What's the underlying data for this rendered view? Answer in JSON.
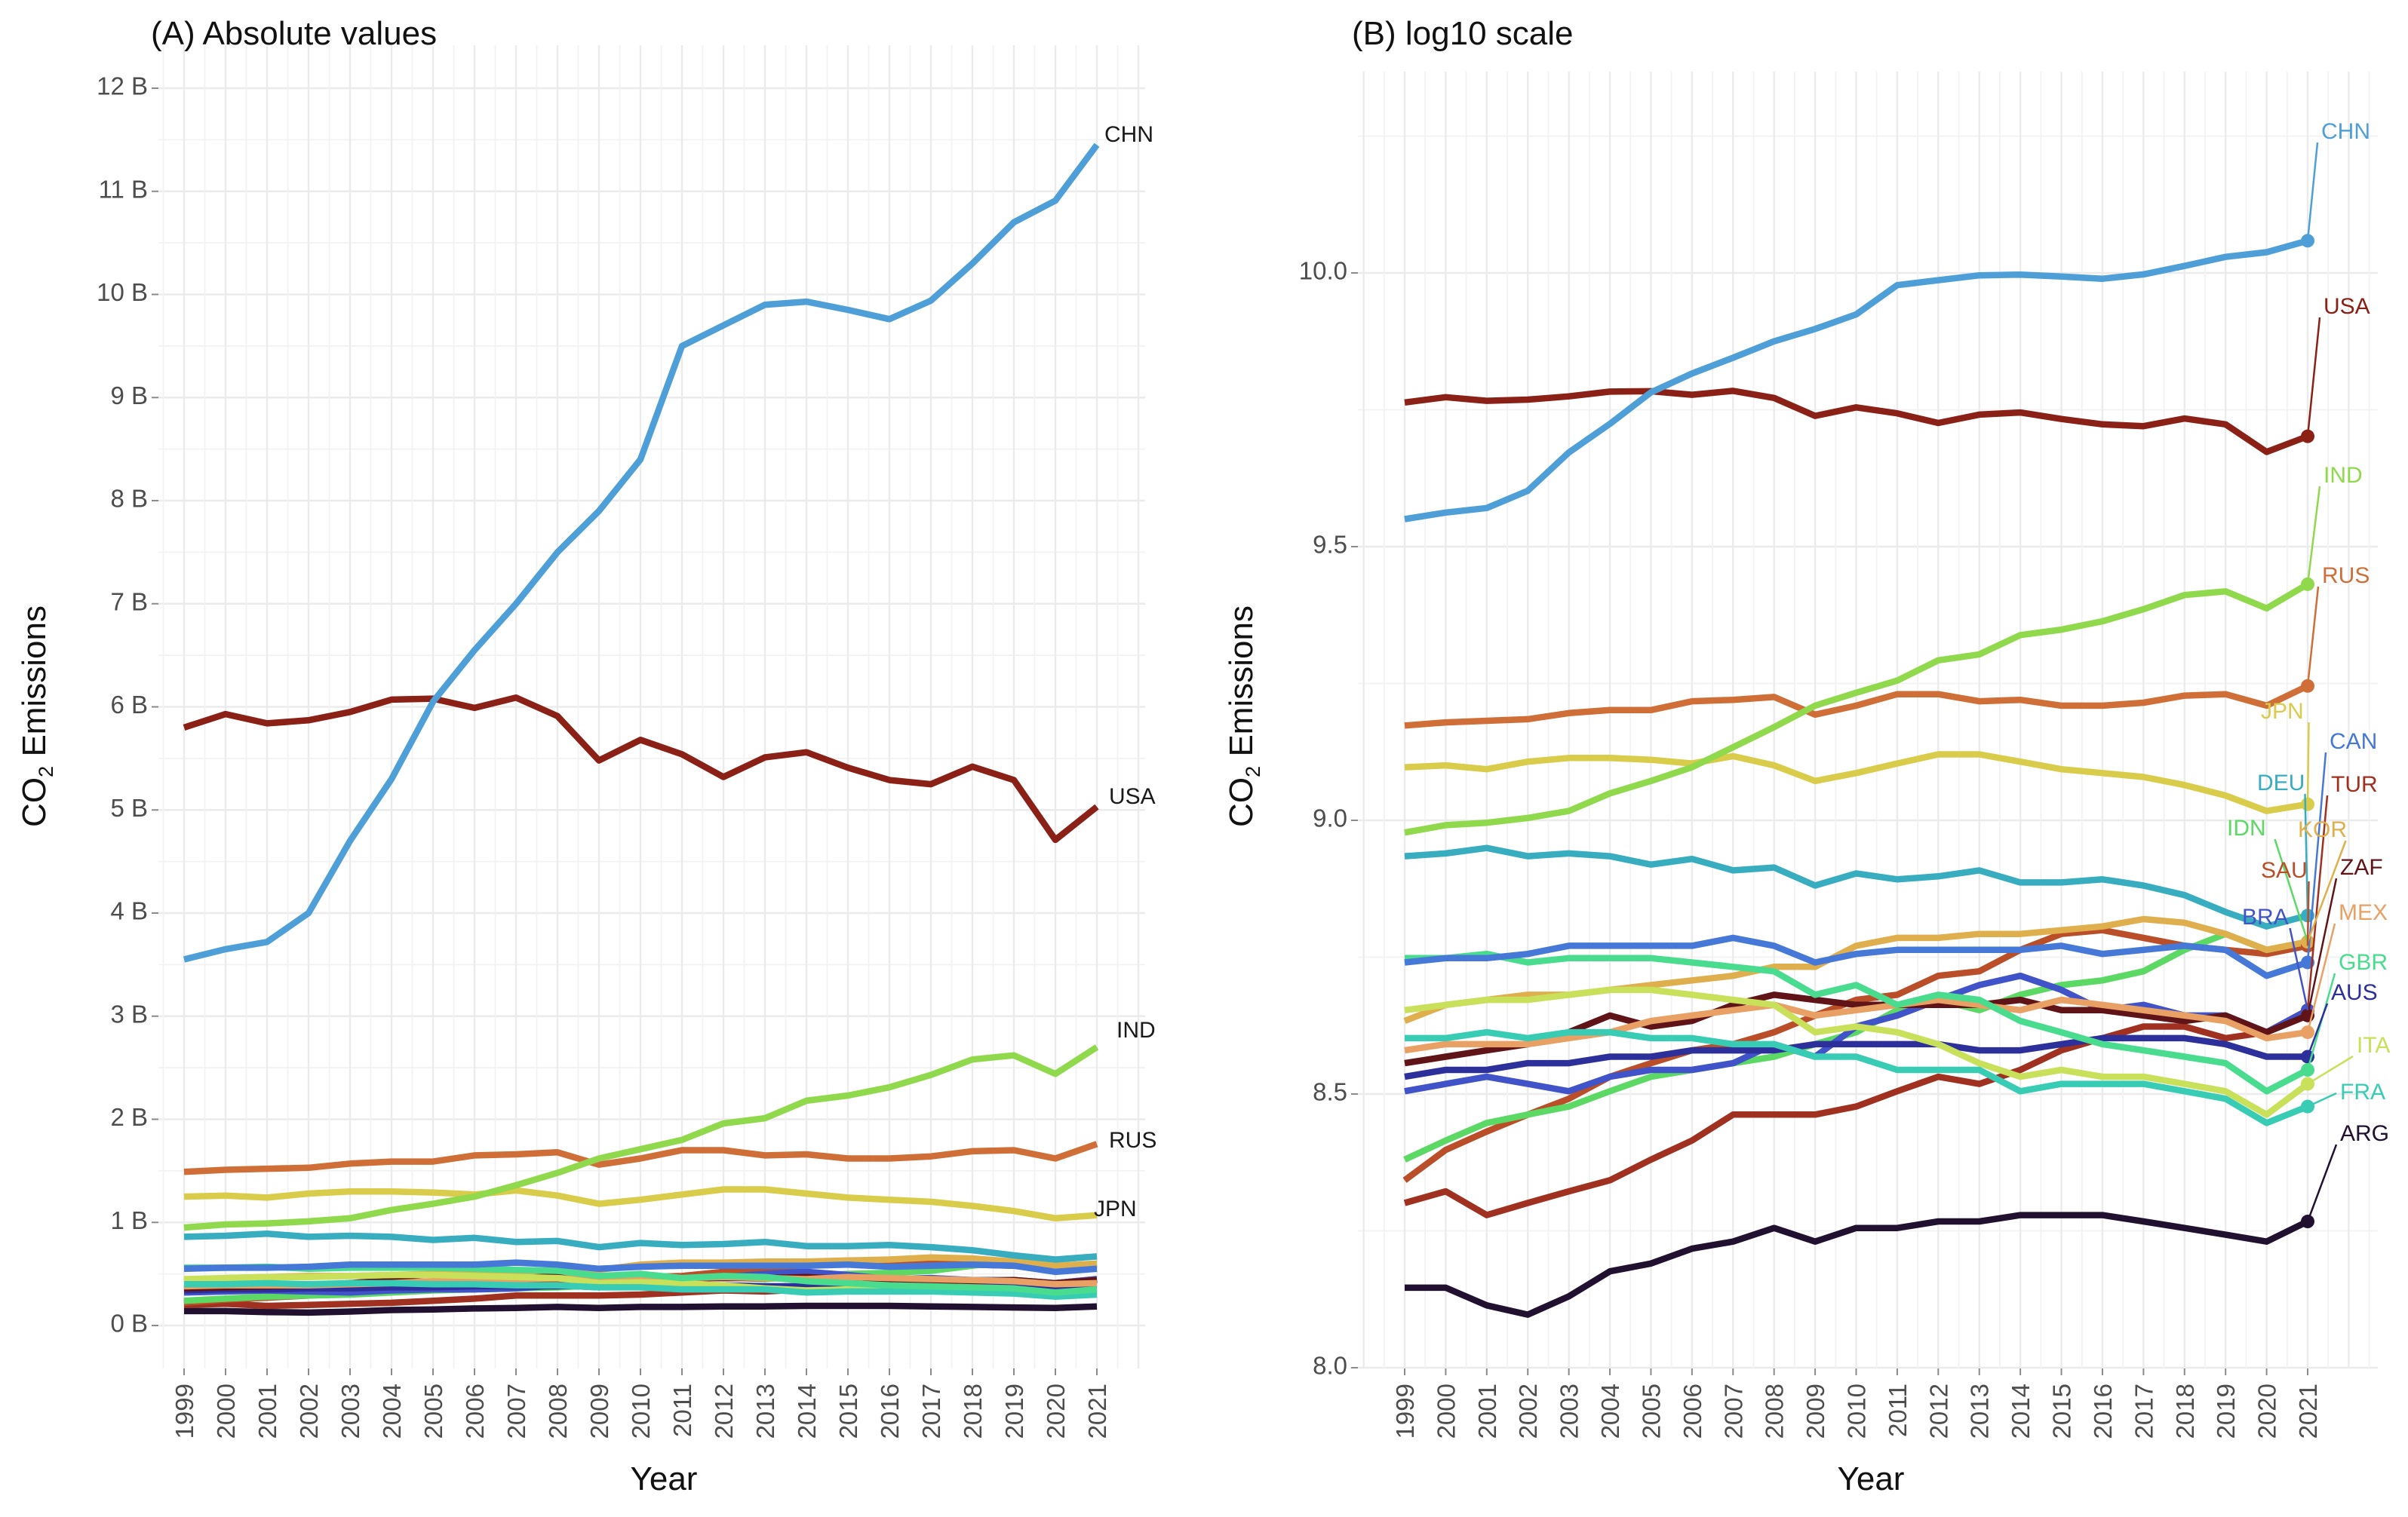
{
  "figure": {
    "panel_a": {
      "title": "(A) Absolute values"
    },
    "panel_b": {
      "title": "(B) log10 scale"
    },
    "x_axis_title": "Year",
    "y_axis": {
      "prefix": "CO",
      "sub": "2",
      "suffix": " Emissions"
    },
    "background": "#ffffff"
  },
  "chart_data": [
    {
      "type": "line",
      "title": "(A) Absolute values",
      "xlabel": "Year",
      "ylabel": "CO₂ Emissions",
      "y_unit": "billion tonnes",
      "ylim": [
        0,
        12.4
      ],
      "grid": true,
      "grid_major_color": "#ebebeb",
      "grid_minor_color": "#f2f2f2",
      "x": [
        1999,
        2000,
        2001,
        2002,
        2003,
        2004,
        2005,
        2006,
        2007,
        2008,
        2009,
        2010,
        2011,
        2012,
        2013,
        2014,
        2015,
        2016,
        2017,
        2018,
        2019,
        2020,
        2021
      ],
      "ytick_values": [
        0,
        1,
        2,
        3,
        4,
        5,
        6,
        7,
        8,
        9,
        10,
        11,
        12
      ],
      "ytick_labels": [
        "0 B",
        "1 B",
        "2 B",
        "3 B",
        "4 B",
        "5 B",
        "6 B",
        "7 B",
        "8 B",
        "9 B",
        "10 B",
        "11 B",
        "12 B"
      ],
      "yminor_values": [
        0.5,
        1.5,
        2.5,
        3.5,
        4.5,
        5.5,
        6.5,
        7.5,
        8.5,
        9.5,
        10.5,
        11.5
      ],
      "series": [
        {
          "name": "ARG",
          "color": "#221031",
          "values": [
            0.14,
            0.14,
            0.13,
            0.125,
            0.135,
            0.15,
            0.155,
            0.165,
            0.17,
            0.18,
            0.17,
            0.18,
            0.18,
            0.185,
            0.185,
            0.19,
            0.19,
            0.19,
            0.185,
            0.18,
            0.175,
            0.17,
            0.185
          ]
        },
        {
          "name": "TUR",
          "color": "#A03020",
          "values": [
            0.2,
            0.21,
            0.19,
            0.2,
            0.21,
            0.22,
            0.24,
            0.26,
            0.29,
            0.29,
            0.29,
            0.3,
            0.32,
            0.34,
            0.33,
            0.35,
            0.38,
            0.4,
            0.42,
            0.42,
            0.4,
            0.41,
            0.45
          ]
        },
        {
          "name": "SAU",
          "color": "#B94E28",
          "values": [
            0.22,
            0.25,
            0.27,
            0.29,
            0.31,
            0.34,
            0.36,
            0.38,
            0.39,
            0.41,
            0.44,
            0.47,
            0.48,
            0.52,
            0.53,
            0.58,
            0.62,
            0.63,
            0.61,
            0.59,
            0.58,
            0.57,
            0.59
          ]
        },
        {
          "name": "IDN",
          "color": "#5CD964",
          "values": [
            0.24,
            0.26,
            0.28,
            0.29,
            0.3,
            0.32,
            0.34,
            0.35,
            0.36,
            0.37,
            0.39,
            0.41,
            0.45,
            0.47,
            0.45,
            0.48,
            0.5,
            0.51,
            0.53,
            0.58,
            0.62,
            0.58,
            0.6
          ]
        },
        {
          "name": "BRA",
          "color": "#4053C8",
          "values": [
            0.32,
            0.33,
            0.34,
            0.33,
            0.32,
            0.34,
            0.35,
            0.35,
            0.36,
            0.39,
            0.37,
            0.42,
            0.44,
            0.47,
            0.5,
            0.52,
            0.49,
            0.45,
            0.46,
            0.44,
            0.44,
            0.41,
            0.45
          ]
        },
        {
          "name": "AUS",
          "color": "#2D309B",
          "values": [
            0.34,
            0.35,
            0.35,
            0.36,
            0.36,
            0.37,
            0.37,
            0.38,
            0.38,
            0.38,
            0.39,
            0.39,
            0.39,
            0.39,
            0.38,
            0.38,
            0.39,
            0.4,
            0.4,
            0.4,
            0.39,
            0.37,
            0.37
          ]
        },
        {
          "name": "ZAF",
          "color": "#601418",
          "values": [
            0.36,
            0.37,
            0.38,
            0.39,
            0.41,
            0.44,
            0.42,
            0.43,
            0.46,
            0.48,
            0.47,
            0.46,
            0.46,
            0.46,
            0.46,
            0.47,
            0.45,
            0.45,
            0.44,
            0.43,
            0.44,
            0.41,
            0.44
          ]
        },
        {
          "name": "MEX",
          "color": "#E8A064",
          "values": [
            0.38,
            0.39,
            0.39,
            0.39,
            0.4,
            0.41,
            0.43,
            0.44,
            0.45,
            0.46,
            0.44,
            0.45,
            0.46,
            0.47,
            0.46,
            0.45,
            0.47,
            0.46,
            0.45,
            0.44,
            0.43,
            0.4,
            0.41
          ]
        },
        {
          "name": "KOR",
          "color": "#DFAF4E",
          "values": [
            0.43,
            0.46,
            0.47,
            0.48,
            0.48,
            0.49,
            0.5,
            0.51,
            0.52,
            0.54,
            0.54,
            0.59,
            0.61,
            0.61,
            0.62,
            0.62,
            0.63,
            0.64,
            0.66,
            0.65,
            0.62,
            0.58,
            0.6
          ]
        },
        {
          "name": "ITA",
          "color": "#C8E05A",
          "values": [
            0.45,
            0.46,
            0.47,
            0.47,
            0.48,
            0.49,
            0.49,
            0.48,
            0.47,
            0.46,
            0.41,
            0.42,
            0.41,
            0.39,
            0.36,
            0.34,
            0.35,
            0.34,
            0.34,
            0.33,
            0.32,
            0.29,
            0.33
          ]
        },
        {
          "name": "FRA",
          "color": "#38CCB4",
          "values": [
            0.4,
            0.4,
            0.41,
            0.4,
            0.41,
            0.41,
            0.4,
            0.4,
            0.39,
            0.39,
            0.37,
            0.37,
            0.35,
            0.35,
            0.35,
            0.32,
            0.33,
            0.33,
            0.33,
            0.32,
            0.31,
            0.28,
            0.3
          ]
        },
        {
          "name": "GBR",
          "color": "#4ADC8E",
          "values": [
            0.56,
            0.56,
            0.57,
            0.55,
            0.56,
            0.56,
            0.56,
            0.55,
            0.54,
            0.53,
            0.48,
            0.5,
            0.46,
            0.48,
            0.47,
            0.43,
            0.41,
            0.39,
            0.38,
            0.37,
            0.36,
            0.32,
            0.35
          ]
        },
        {
          "name": "CAN",
          "color": "#4678D8",
          "values": [
            0.55,
            0.56,
            0.56,
            0.57,
            0.59,
            0.59,
            0.59,
            0.59,
            0.61,
            0.59,
            0.55,
            0.57,
            0.58,
            0.58,
            0.58,
            0.58,
            0.59,
            0.57,
            0.58,
            0.59,
            0.58,
            0.52,
            0.55
          ]
        },
        {
          "name": "DEU",
          "color": "#38ADC0",
          "values": [
            0.86,
            0.87,
            0.89,
            0.86,
            0.87,
            0.86,
            0.83,
            0.85,
            0.81,
            0.82,
            0.76,
            0.8,
            0.78,
            0.79,
            0.81,
            0.77,
            0.77,
            0.78,
            0.76,
            0.73,
            0.68,
            0.64,
            0.67
          ]
        },
        {
          "name": "JPN",
          "color": "#D9CC4A",
          "values": [
            1.25,
            1.26,
            1.24,
            1.28,
            1.3,
            1.3,
            1.29,
            1.27,
            1.31,
            1.26,
            1.18,
            1.22,
            1.27,
            1.32,
            1.32,
            1.28,
            1.24,
            1.22,
            1.2,
            1.16,
            1.11,
            1.04,
            1.07
          ]
        },
        {
          "name": "RUS",
          "color": "#D06E38",
          "values": [
            1.49,
            1.51,
            1.52,
            1.53,
            1.57,
            1.59,
            1.59,
            1.65,
            1.66,
            1.68,
            1.56,
            1.62,
            1.7,
            1.7,
            1.65,
            1.66,
            1.62,
            1.62,
            1.64,
            1.69,
            1.7,
            1.62,
            1.76
          ]
        },
        {
          "name": "IND",
          "color": "#90D94C",
          "values": [
            0.95,
            0.98,
            0.99,
            1.01,
            1.04,
            1.12,
            1.18,
            1.25,
            1.36,
            1.48,
            1.62,
            1.71,
            1.8,
            1.96,
            2.01,
            2.18,
            2.23,
            2.31,
            2.43,
            2.58,
            2.62,
            2.44,
            2.7
          ]
        },
        {
          "name": "USA",
          "color": "#8B2016",
          "values": [
            5.8,
            5.93,
            5.84,
            5.87,
            5.95,
            6.07,
            6.08,
            5.99,
            6.09,
            5.91,
            5.48,
            5.68,
            5.54,
            5.32,
            5.51,
            5.56,
            5.41,
            5.29,
            5.25,
            5.42,
            5.29,
            4.71,
            5.03
          ]
        },
        {
          "name": "CHN",
          "color": "#4E9FD8",
          "values": [
            3.55,
            3.65,
            3.72,
            4.0,
            4.7,
            5.3,
            6.05,
            6.55,
            7.0,
            7.5,
            7.9,
            8.4,
            9.5,
            9.7,
            9.9,
            9.93,
            9.85,
            9.76,
            9.94,
            10.3,
            10.7,
            10.91,
            11.45
          ]
        }
      ],
      "end_label_color": "#1a1a1a",
      "end_labels": [
        {
          "name": "CHN",
          "x": 1464,
          "y": 180
        },
        {
          "name": "USA",
          "x": 1470,
          "y": 1058
        },
        {
          "name": "IND",
          "x": 1480,
          "y": 1368
        },
        {
          "name": "RUS",
          "x": 1470,
          "y": 1514
        },
        {
          "name": "JPN",
          "x": 1450,
          "y": 1605
        }
      ]
    },
    {
      "type": "line",
      "title": "(B) log10 scale",
      "xlabel": "Year",
      "ylabel": "CO₂ Emissions",
      "y_formula": "log10(tonnes) = 9 + log10(billions); series values shared with panel A",
      "ylim": [
        8.0,
        10.3
      ],
      "grid": true,
      "x": [
        1999,
        2000,
        2001,
        2002,
        2003,
        2004,
        2005,
        2006,
        2007,
        2008,
        2009,
        2010,
        2011,
        2012,
        2013,
        2014,
        2015,
        2016,
        2017,
        2018,
        2019,
        2020,
        2021
      ],
      "ytick_values": [
        8.0,
        8.5,
        9.0,
        9.5,
        10.0
      ],
      "ytick_labels": [
        "8.0",
        "8.5",
        "9.0",
        "9.5",
        "10.0"
      ],
      "yminor_values": [
        8.25,
        8.75,
        9.25,
        9.75,
        10.25
      ],
      "end_dots": true,
      "end_labels": [
        {
          "name": "CHN",
          "x": 3077,
          "y": 176
        },
        {
          "name": "USA",
          "x": 3080,
          "y": 408
        },
        {
          "name": "IND",
          "x": 3080,
          "y": 632
        },
        {
          "name": "RUS",
          "x": 3078,
          "y": 765
        },
        {
          "name": "JPN",
          "x": 2997,
          "y": 945
        },
        {
          "name": "CAN",
          "x": 3088,
          "y": 985
        },
        {
          "name": "DEU",
          "x": 2992,
          "y": 1040
        },
        {
          "name": "TUR",
          "x": 3090,
          "y": 1042
        },
        {
          "name": "IDN",
          "x": 2952,
          "y": 1100
        },
        {
          "name": "KOR",
          "x": 3046,
          "y": 1102
        },
        {
          "name": "SAU",
          "x": 2997,
          "y": 1156
        },
        {
          "name": "ZAF",
          "x": 3102,
          "y": 1152
        },
        {
          "name": "BRA",
          "x": 2972,
          "y": 1218
        },
        {
          "name": "MEX",
          "x": 3100,
          "y": 1212
        },
        {
          "name": "GBR",
          "x": 3100,
          "y": 1278
        },
        {
          "name": "AUS",
          "x": 3090,
          "y": 1318
        },
        {
          "name": "ITA",
          "x": 3124,
          "y": 1388
        },
        {
          "name": "FRA",
          "x": 3102,
          "y": 1450
        },
        {
          "name": "ARG",
          "x": 3102,
          "y": 1505
        }
      ]
    }
  ]
}
